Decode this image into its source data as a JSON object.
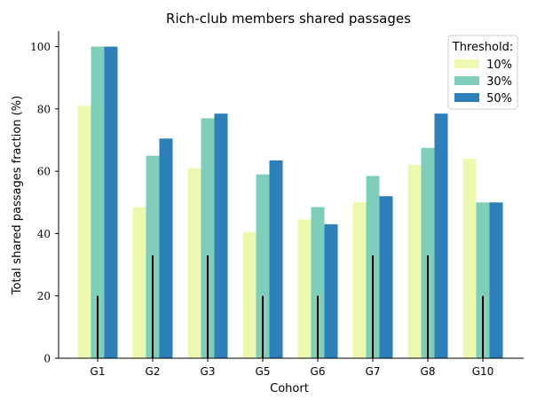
{
  "chart_data": {
    "type": "bar",
    "title": "Rich-club members shared passages",
    "xlabel": "Cohort",
    "ylabel": "Total shared passages fraction (%)",
    "ylim": [
      0,
      105
    ],
    "yticks": [
      0,
      20,
      40,
      60,
      80,
      100
    ],
    "grid": false,
    "categories": [
      "G1",
      "G2",
      "G3",
      "G5",
      "G6",
      "G7",
      "G8",
      "G10"
    ],
    "legend": {
      "title": "Threshold:",
      "placement": "top-right"
    },
    "series": [
      {
        "name": "10%",
        "color": "#edf8b1",
        "values": [
          81,
          48.5,
          61,
          40.5,
          44.5,
          50,
          62,
          64
        ]
      },
      {
        "name": "30%",
        "color": "#7fcdbb",
        "values": [
          100,
          65,
          77,
          59,
          48.5,
          58.5,
          67.5,
          50
        ]
      },
      {
        "name": "50%",
        "color": "#2c7fb8",
        "values": [
          100,
          70.5,
          78.5,
          63.5,
          43,
          52,
          78.5,
          50
        ]
      }
    ],
    "reference_lines": {
      "color": "#000000",
      "values": [
        20,
        33,
        33,
        20,
        20,
        33,
        33,
        20
      ]
    }
  }
}
